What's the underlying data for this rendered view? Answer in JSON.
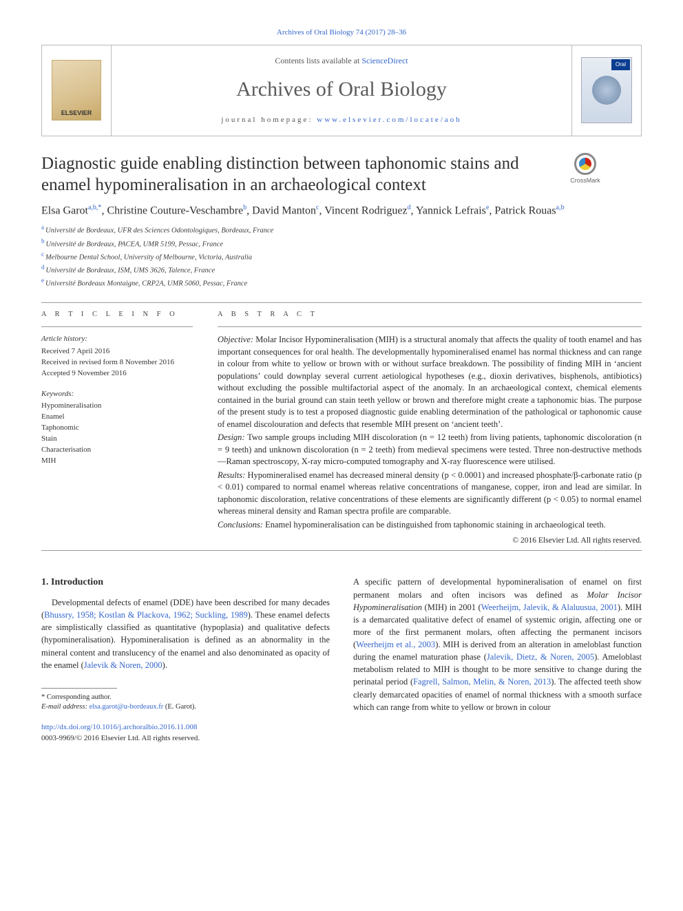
{
  "top_link": "Archives of Oral Biology 74 (2017) 28–36",
  "header": {
    "contents_line_pre": "Contents lists available at ",
    "contents_line_link": "ScienceDirect",
    "journal_name": "Archives of Oral Biology",
    "homepage_label": "journal homepage: ",
    "homepage_url": "www.elsevier.com/locate/aob",
    "elsevier_label": "ELSEVIER",
    "cover_tab": "Oral"
  },
  "crossmark_label": "CrossMark",
  "title": "Diagnostic guide enabling distinction between taphonomic stains and enamel hypomineralisation in an archaeological context",
  "authors_html": "Elsa Garot<sup>a,b,*</sup>, Christine Couture-Veschambre<sup>b</sup>, David Manton<sup>c</sup>, Vincent Rodriguez<sup>d</sup>, Yannick Lefrais<sup>e</sup>, Patrick Rouas<sup>a,b</sup>",
  "affiliations": [
    {
      "label": "a",
      "text": "Université de Bordeaux, UFR des Sciences Odontologiques, Bordeaux, France"
    },
    {
      "label": "b",
      "text": "Université de Bordeaux, PACEA, UMR 5199, Pessac, France"
    },
    {
      "label": "c",
      "text": "Melbourne Dental School, University of Melbourne, Victoria, Australia"
    },
    {
      "label": "d",
      "text": "Université de Bordeaux, ISM, UMS 3626, Talence, France"
    },
    {
      "label": "e",
      "text": "Université Bordeaux Montaigne, CRP2A, UMR 5060, Pessac, France"
    }
  ],
  "article_info": {
    "section_label": "A R T I C L E  I N F O",
    "history_hdr": "Article history:",
    "history": [
      "Received 7 April 2016",
      "Received in revised form 8 November 2016",
      "Accepted 9 November 2016"
    ],
    "keywords_hdr": "Keywords:",
    "keywords": [
      "Hypomineralisation",
      "Enamel",
      "Taphonomic",
      "Stain",
      "Characterisation",
      "MIH"
    ]
  },
  "abstract": {
    "section_label": "A B S T R A C T",
    "objective_lead": "Objective:",
    "objective": " Molar Incisor Hypomineralisation (MIH) is a structural anomaly that affects the quality of tooth enamel and has important consequences for oral health. The developmentally hypomineralised enamel has normal thickness and can range in colour from white to yellow or brown with or without surface breakdown. The possibility of finding MIH in ‘ancient populations’ could downplay several current aetiological hypotheses (e.g., dioxin derivatives, bisphenols, antibiotics) without excluding the possible multifactorial aspect of the anomaly. In an archaeological context, chemical elements contained in the burial ground can stain teeth yellow or brown and therefore might create a taphonomic bias. The purpose of the present study is to test a proposed diagnostic guide enabling determination of the pathological or taphonomic cause of enamel discolouration and defects that resemble MIH present on ‘ancient teeth’.",
    "design_lead": "Design:",
    "design": " Two sample groups including MIH discoloration (n = 12 teeth) from living patients, taphonomic discoloration (n = 9 teeth) and unknown discoloration (n = 2 teeth) from medieval specimens were tested. Three non-destructive methods—Raman spectroscopy, X-ray micro-computed tomography and X-ray fluorescence were utilised.",
    "results_lead": "Results:",
    "results": " Hypomineralised enamel has decreased mineral density (p < 0.0001) and increased phosphate/β-carbonate ratio (p < 0.01) compared to normal enamel whereas relative concentrations of manganese, copper, iron and lead are similar. In taphonomic discoloration, relative concentrations of these elements are significantly different (p < 0.05) to normal enamel whereas mineral density and Raman spectra profile are comparable.",
    "conclusions_lead": "Conclusions:",
    "conclusions": " Enamel hypomineralisation can be distinguished from taphonomic staining in archaeological teeth.",
    "copyright": "© 2016 Elsevier Ltd. All rights reserved."
  },
  "body": {
    "intro_heading": "1. Introduction",
    "left_para": "Developmental defects of enamel (DDE) have been described for many decades (<span class=\"ref\">Bhussry, 1958; Kostlan & Plackova, 1962; Suckling, 1989</span>). These enamel defects are simplistically classified as quantitative (hypoplasia) and qualitative defects (hypomineralisation). Hypomineralisation is defined as an abnormality in the mineral content and translucency of the enamel and also denominated as opacity of the enamel (<span class=\"ref\">Jalevik & Noren, 2000</span>).",
    "right_para": "A specific pattern of developmental hypomineralisation of enamel on first permanent molars and often incisors was defined as <i>Molar Incisor Hypomineralisation</i> (MIH) in 2001 (<span class=\"ref\">Weerheijm, Jalevik, & Alaluusua, 2001</span>). MIH is a demarcated qualitative defect of enamel of systemic origin, affecting one or more of the first permanent molars, often affecting the permanent incisors (<span class=\"ref\">Weerheijm et al., 2003</span>). MIH is derived from an alteration in ameloblast function during the enamel maturation phase (<span class=\"ref\">Jalevik, Dietz, & Noren, 2005</span>). Ameloblast metabolism related to MIH is thought to be more sensitive to change during the perinatal period (<span class=\"ref\">Fagrell, Salmon, Melin, & Noren, 2013</span>). The affected teeth show clearly demarcated opacities of enamel of normal thickness with a smooth surface which can range from white to yellow or brown in colour"
  },
  "footnotes": {
    "corresp": "* Corresponding author.",
    "email_label": "E-mail address: ",
    "email": "elsa.garot@u-bordeaux.fr",
    "email_suffix": " (E. Garot)."
  },
  "doi": {
    "url": "http://dx.doi.org/10.1016/j.archoralbio.2016.11.008",
    "issn_line": "0003-9969/© 2016 Elsevier Ltd. All rights reserved."
  },
  "colors": {
    "link": "#3366cc",
    "rule": "#999999",
    "text": "#2a2a2a"
  }
}
